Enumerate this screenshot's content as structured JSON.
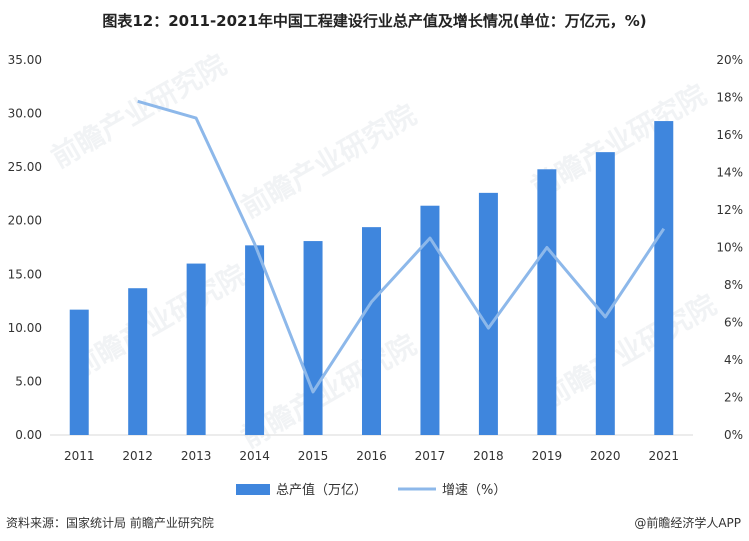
{
  "title": "图表12：2011-2021年中国工程建设行业总产值及增长情况(单位：万亿元，%)",
  "source": "资料来源：国家统计局 前瞻产业研究院",
  "brand": "@前瞻经济学人APP",
  "watermark": "前瞻产业研究院",
  "colors": {
    "bar": "#3f86dd",
    "line": "#8db8ea"
  },
  "chart_data": {
    "type": "bar",
    "categories": [
      "2011",
      "2012",
      "2013",
      "2014",
      "2015",
      "2016",
      "2017",
      "2018",
      "2019",
      "2020",
      "2021"
    ],
    "series": [
      {
        "name": "总产值（万亿）",
        "type": "bar",
        "axis": "left",
        "values": [
          11.7,
          13.7,
          16.0,
          17.7,
          18.1,
          19.4,
          21.4,
          22.6,
          24.8,
          26.4,
          29.3
        ]
      },
      {
        "name": "增速（%）",
        "type": "line",
        "axis": "right",
        "values": [
          null,
          17.8,
          16.9,
          10.2,
          2.3,
          7.1,
          10.5,
          5.7,
          10.0,
          6.3,
          11.0
        ]
      }
    ],
    "ylim_left": [
      0,
      35
    ],
    "yticks_left": [
      "0.00",
      "5.00",
      "10.00",
      "15.00",
      "20.00",
      "25.00",
      "30.00",
      "35.00"
    ],
    "ylim_right": [
      0,
      20
    ],
    "yticks_right": [
      "0%",
      "2%",
      "4%",
      "6%",
      "8%",
      "10%",
      "12%",
      "14%",
      "16%",
      "18%",
      "20%"
    ],
    "legend_position": "bottom",
    "grid": false
  }
}
